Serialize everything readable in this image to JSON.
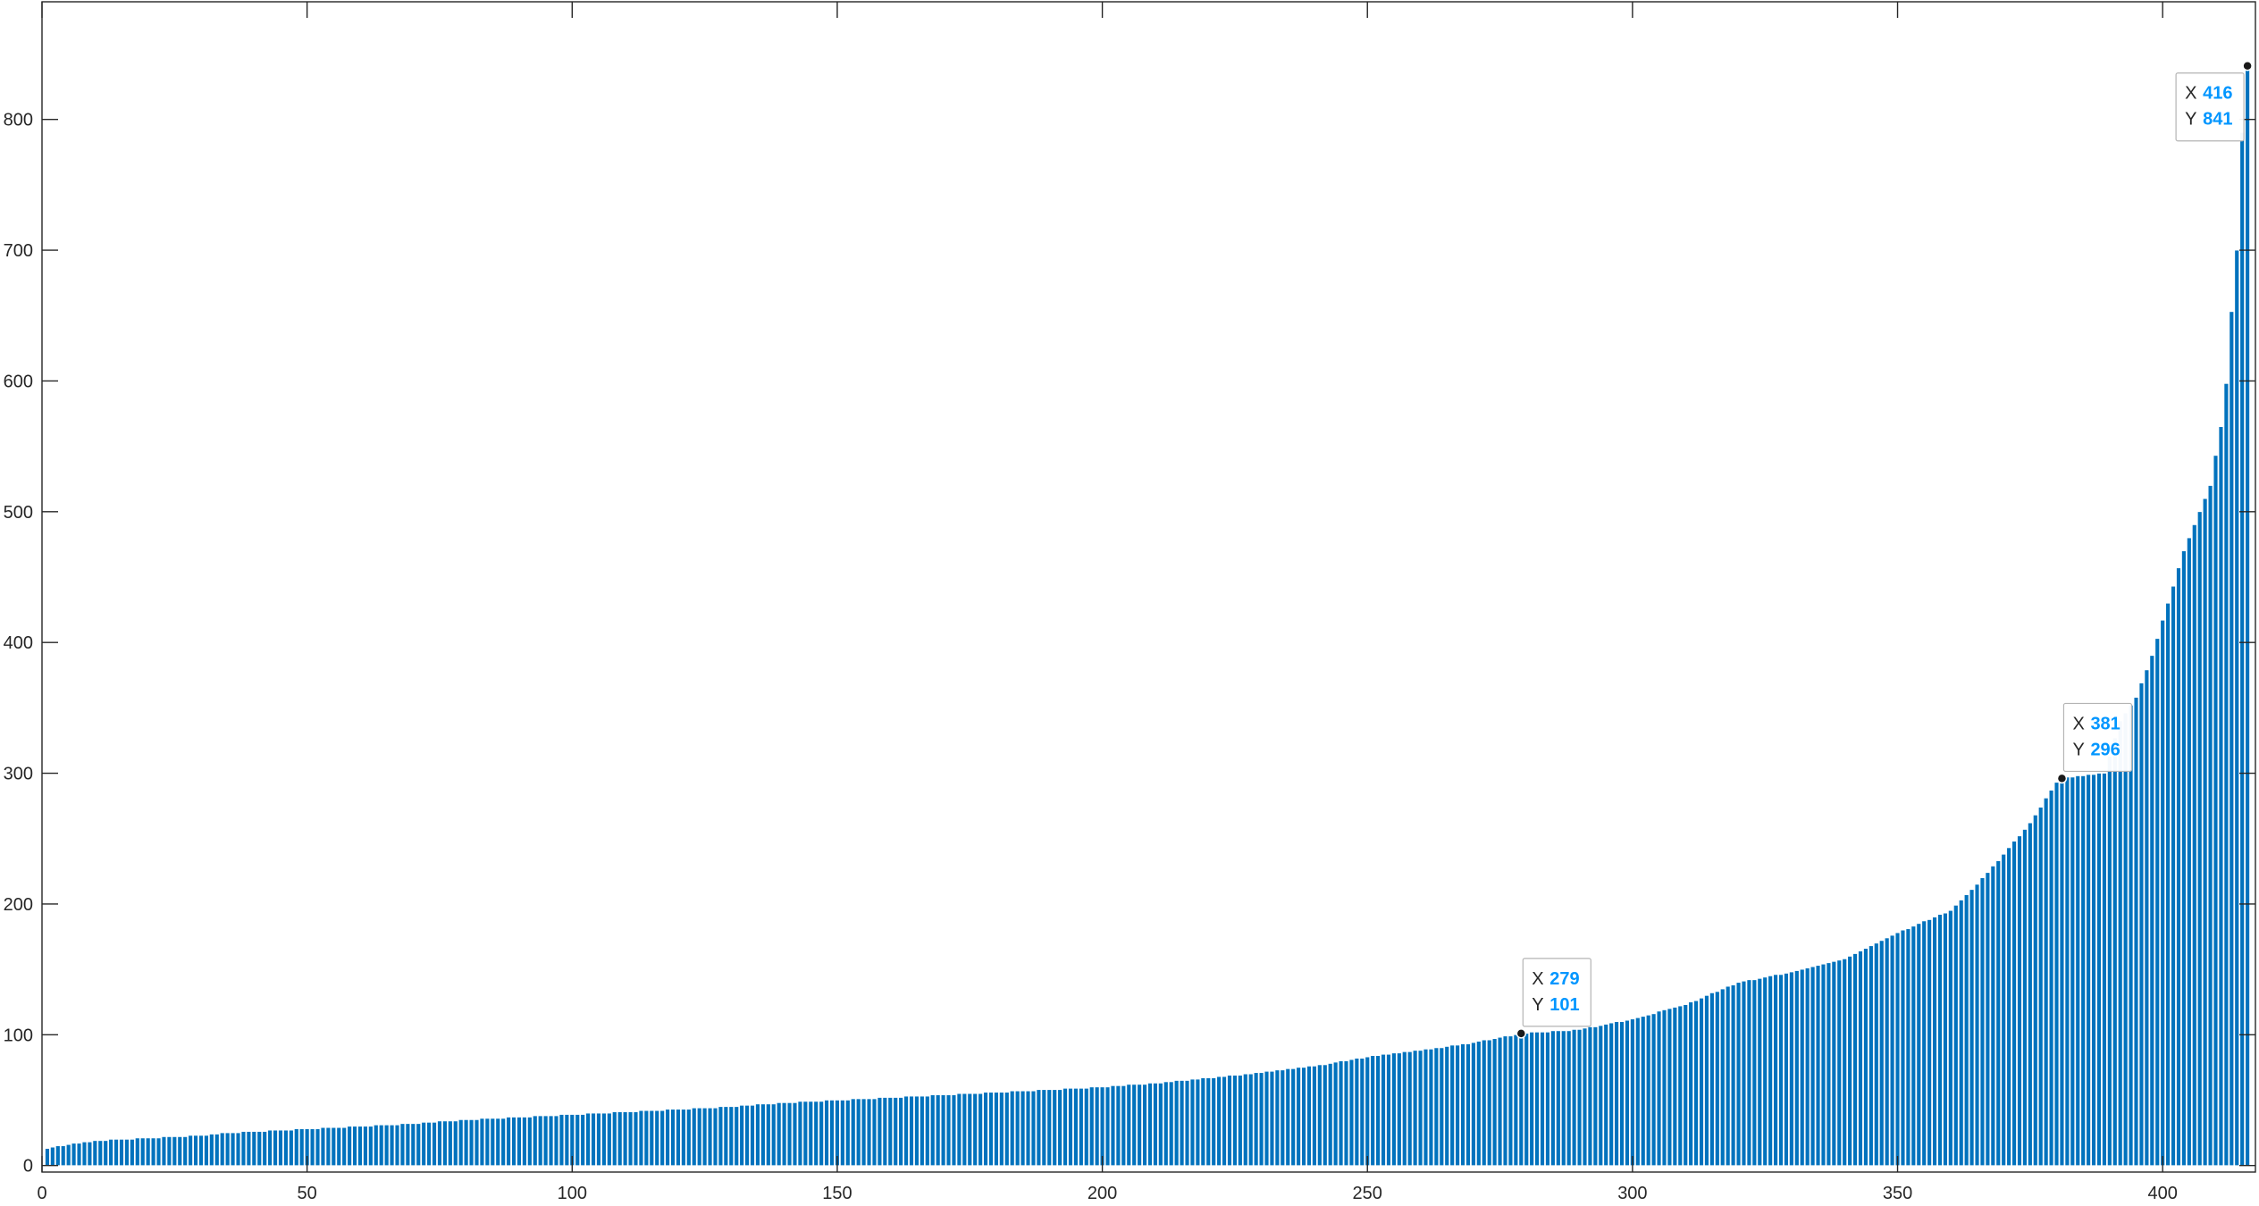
{
  "chart_data": {
    "type": "bar",
    "title": "",
    "xlabel": "",
    "ylabel": "",
    "xlim": [
      0,
      417.5
    ],
    "ylim": [
      -5,
      890
    ],
    "xticks": [
      0,
      50,
      100,
      150,
      200,
      250,
      300,
      350,
      400
    ],
    "yticks": [
      0,
      100,
      200,
      300,
      400,
      500,
      600,
      700,
      800
    ],
    "grid": false,
    "legend": "none",
    "bar_color": "#0072bd",
    "bar_edge_color": "#ffffff",
    "count": 416,
    "x_start": 1,
    "values_note_free": true,
    "anchors": [
      [
        1,
        13
      ],
      [
        5,
        16
      ],
      [
        10,
        19
      ],
      [
        20,
        21
      ],
      [
        30,
        23
      ],
      [
        35,
        25
      ],
      [
        40,
        26
      ],
      [
        50,
        28
      ],
      [
        60,
        30
      ],
      [
        70,
        32
      ],
      [
        80,
        35
      ],
      [
        90,
        37
      ],
      [
        100,
        39
      ],
      [
        110,
        41
      ],
      [
        120,
        43
      ],
      [
        130,
        45
      ],
      [
        140,
        48
      ],
      [
        150,
        50
      ],
      [
        160,
        52
      ],
      [
        170,
        54
      ],
      [
        180,
        56
      ],
      [
        190,
        58
      ],
      [
        200,
        60
      ],
      [
        210,
        63
      ],
      [
        220,
        67
      ],
      [
        230,
        71
      ],
      [
        240,
        76
      ],
      [
        250,
        83
      ],
      [
        260,
        88
      ],
      [
        270,
        94
      ],
      [
        279,
        101
      ],
      [
        290,
        104
      ],
      [
        300,
        112
      ],
      [
        310,
        123
      ],
      [
        320,
        140
      ],
      [
        330,
        148
      ],
      [
        340,
        158
      ],
      [
        350,
        178
      ],
      [
        360,
        195
      ],
      [
        365,
        215
      ],
      [
        370,
        238
      ],
      [
        375,
        262
      ],
      [
        380,
        293
      ],
      [
        381,
        296
      ],
      [
        389,
        300
      ],
      [
        392,
        340
      ],
      [
        395,
        358
      ],
      [
        398,
        390
      ],
      [
        401,
        430
      ],
      [
        404,
        470
      ],
      [
        407,
        500
      ],
      [
        409,
        520
      ],
      [
        411,
        565
      ],
      [
        412,
        598
      ],
      [
        413,
        653
      ],
      [
        414,
        700
      ],
      [
        415,
        790
      ],
      [
        416,
        841
      ]
    ],
    "datatips": [
      {
        "x_label": "X",
        "y_label": "Y",
        "x": 279,
        "y": 101
      },
      {
        "x_label": "X",
        "y_label": "Y",
        "x": 381,
        "y": 296
      },
      {
        "x_label": "X",
        "y_label": "Y",
        "x": 416,
        "y": 841
      }
    ]
  }
}
